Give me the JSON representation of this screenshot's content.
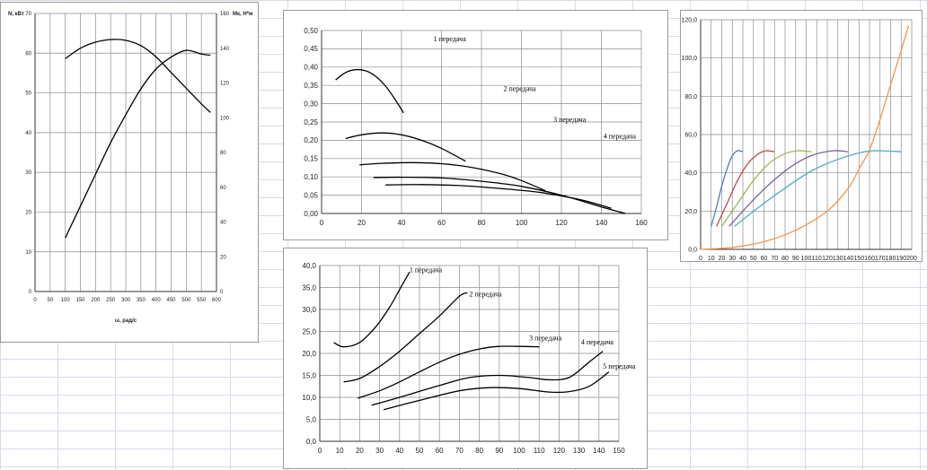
{
  "chart_data": [
    {
      "id": "c1",
      "type": "line",
      "x": {
        "min": 0,
        "max": 600,
        "step": 50,
        "label": "ω, рад/с",
        "ticks": [
          "0",
          "50",
          "100",
          "150",
          "200",
          "250",
          "300",
          "350",
          "400",
          "450",
          "500",
          "550",
          "600"
        ]
      },
      "y_left": {
        "min": 0,
        "max": 70,
        "step": 10,
        "label": "N, кВт",
        "ticks": [
          "0",
          "10",
          "20",
          "30",
          "40",
          "50",
          "60",
          "70"
        ]
      },
      "y_right": {
        "min": 0,
        "max": 160,
        "step": 20,
        "label": "Mк, Н*м",
        "ticks": [
          "0",
          "20",
          "40",
          "60",
          "80",
          "100",
          "120",
          "140",
          "160"
        ]
      },
      "grid": true,
      "series": [
        {
          "axis": "left",
          "color": "#000000",
          "points": [
            [
              100,
              13.5
            ],
            [
              150,
              21.5
            ],
            [
              200,
              29.5
            ],
            [
              250,
              37.5
            ],
            [
              300,
              44.5
            ],
            [
              350,
              51
            ],
            [
              400,
              56
            ],
            [
              450,
              59
            ],
            [
              500,
              60.7
            ],
            [
              550,
              59.8
            ],
            [
              580,
              59.5
            ]
          ]
        },
        {
          "axis": "right",
          "color": "#000000",
          "points": [
            [
              100,
              134
            ],
            [
              150,
              140
            ],
            [
              200,
              143.5
            ],
            [
              250,
              145
            ],
            [
              300,
              144.5
            ],
            [
              350,
              141.5
            ],
            [
              400,
              135
            ],
            [
              450,
              126
            ],
            [
              500,
              117
            ],
            [
              550,
              108
            ],
            [
              580,
              103
            ]
          ]
        }
      ]
    },
    {
      "id": "c2",
      "type": "line",
      "x": {
        "min": 0,
        "max": 160,
        "step": 20,
        "ticks": [
          "0",
          "20",
          "40",
          "60",
          "80",
          "100",
          "120",
          "140",
          "160"
        ]
      },
      "y": {
        "min": 0,
        "max": 0.5,
        "step": 0.05,
        "ticks": [
          "0,00",
          "0,05",
          "0,10",
          "0,15",
          "0,20",
          "0,25",
          "0,30",
          "0,35",
          "0,40",
          "0,45",
          "0,50"
        ]
      },
      "grid": true,
      "annotations": [
        {
          "text": "1 передача",
          "x": 56,
          "y": 0.47
        },
        {
          "text": "2 передача",
          "x": 91,
          "y": 0.335
        },
        {
          "text": "3 передача",
          "x": 116,
          "y": 0.25
        },
        {
          "text": "4 передача",
          "x": 141,
          "y": 0.205
        }
      ],
      "series": [
        {
          "color": "#000000",
          "points": [
            [
              7,
              0.365
            ],
            [
              12,
              0.385
            ],
            [
              17,
              0.393
            ],
            [
              22,
              0.39
            ],
            [
              27,
              0.375
            ],
            [
              32,
              0.348
            ],
            [
              37,
              0.31
            ],
            [
              41,
              0.275
            ]
          ]
        },
        {
          "color": "#000000",
          "points": [
            [
              12,
              0.205
            ],
            [
              20,
              0.215
            ],
            [
              30,
              0.22
            ],
            [
              40,
              0.215
            ],
            [
              50,
              0.2
            ],
            [
              60,
              0.178
            ],
            [
              72,
              0.143
            ]
          ]
        },
        {
          "color": "#000000",
          "points": [
            [
              19,
              0.133
            ],
            [
              30,
              0.137
            ],
            [
              45,
              0.139
            ],
            [
              60,
              0.136
            ],
            [
              75,
              0.126
            ],
            [
              90,
              0.108
            ],
            [
              100,
              0.09
            ],
            [
              112,
              0.062
            ]
          ]
        },
        {
          "color": "#000000",
          "points": [
            [
              26,
              0.098
            ],
            [
              40,
              0.099
            ],
            [
              60,
              0.097
            ],
            [
              80,
              0.088
            ],
            [
              100,
              0.074
            ],
            [
              120,
              0.05
            ],
            [
              140,
              0.018
            ],
            [
              152,
              0.0
            ]
          ]
        },
        {
          "color": "#000000",
          "points": [
            [
              32,
              0.078
            ],
            [
              50,
              0.079
            ],
            [
              70,
              0.076
            ],
            [
              90,
              0.068
            ],
            [
              110,
              0.057
            ],
            [
              130,
              0.037
            ],
            [
              145,
              0.014
            ]
          ]
        }
      ]
    },
    {
      "id": "c3",
      "type": "line",
      "x": {
        "min": 0,
        "max": 150,
        "step": 10,
        "ticks": [
          "0",
          "10",
          "20",
          "30",
          "40",
          "50",
          "60",
          "70",
          "80",
          "90",
          "100",
          "110",
          "120",
          "130",
          "140",
          "150"
        ]
      },
      "y": {
        "min": 0,
        "max": 40,
        "step": 5,
        "ticks": [
          "0,0",
          "5,0",
          "10,0",
          "15,0",
          "20,0",
          "25,0",
          "30,0",
          "35,0",
          "40,0"
        ]
      },
      "grid": true,
      "annotations": [
        {
          "text": "1 передача",
          "x": 45,
          "y": 38.5
        },
        {
          "text": "2 передача",
          "x": 75,
          "y": 33.0
        },
        {
          "text": "3 передача",
          "x": 105,
          "y": 23.0
        },
        {
          "text": "4 передача",
          "x": 131,
          "y": 22.0
        },
        {
          "text": "5 передача",
          "x": 142,
          "y": 16.5
        }
      ],
      "series": [
        {
          "color": "#000000",
          "points": [
            [
              7,
              22.5
            ],
            [
              12,
              21.5
            ],
            [
              20,
              22.5
            ],
            [
              28,
              26
            ],
            [
              35,
              30.5
            ],
            [
              40,
              34.5
            ],
            [
              45,
              38.5
            ]
          ]
        },
        {
          "color": "#000000",
          "points": [
            [
              12,
              13.5
            ],
            [
              20,
              14.3
            ],
            [
              30,
              17
            ],
            [
              40,
              20.5
            ],
            [
              50,
              24.5
            ],
            [
              60,
              28.5
            ],
            [
              70,
              33
            ],
            [
              74,
              33.8
            ]
          ]
        },
        {
          "color": "#000000",
          "points": [
            [
              19,
              9.8
            ],
            [
              30,
              11.5
            ],
            [
              40,
              13.5
            ],
            [
              50,
              15.8
            ],
            [
              60,
              18
            ],
            [
              70,
              19.8
            ],
            [
              80,
              21
            ],
            [
              90,
              21.6
            ],
            [
              100,
              21.6
            ],
            [
              110,
              21.5
            ]
          ]
        },
        {
          "color": "#000000",
          "points": [
            [
              26,
              8.2
            ],
            [
              40,
              10
            ],
            [
              60,
              12.7
            ],
            [
              75,
              14.5
            ],
            [
              90,
              15
            ],
            [
              105,
              14.5
            ],
            [
              115,
              14
            ],
            [
              125,
              14.5
            ],
            [
              135,
              18
            ],
            [
              142,
              20.5
            ]
          ]
        },
        {
          "color": "#000000",
          "points": [
            [
              32,
              7.2
            ],
            [
              50,
              9.3
            ],
            [
              70,
              11.5
            ],
            [
              85,
              12.2
            ],
            [
              100,
              12
            ],
            [
              115,
              11.2
            ],
            [
              125,
              11.3
            ],
            [
              135,
              12.5
            ],
            [
              145,
              15.8
            ]
          ]
        }
      ]
    },
    {
      "id": "c4",
      "type": "line",
      "x": {
        "min": 0,
        "max": 200,
        "step": 10,
        "ticks": [
          "0",
          "10",
          "20",
          "30",
          "40",
          "50",
          "60",
          "70",
          "80",
          "90",
          "100",
          "110",
          "120",
          "130",
          "140",
          "150",
          "160",
          "170",
          "180",
          "190",
          "200"
        ]
      },
      "y": {
        "min": 0,
        "max": 120,
        "step": 20,
        "ticks": [
          "0,0",
          "20,0",
          "40,0",
          "60,0",
          "80,0",
          "100,0",
          "120,0"
        ]
      },
      "grid": true,
      "series": [
        {
          "color": "#4a7ebb",
          "points": [
            [
              10,
              12
            ],
            [
              15,
              22
            ],
            [
              20,
              33
            ],
            [
              25,
              42
            ],
            [
              30,
              49
            ],
            [
              35,
              51.5
            ],
            [
              40,
              51
            ]
          ]
        },
        {
          "color": "#be4b48",
          "points": [
            [
              15,
              12
            ],
            [
              25,
              24
            ],
            [
              35,
              36
            ],
            [
              45,
              45
            ],
            [
              55,
              50
            ],
            [
              62,
              51.5
            ],
            [
              70,
              51
            ]
          ]
        },
        {
          "color": "#98b954",
          "points": [
            [
              20,
              12
            ],
            [
              35,
              24
            ],
            [
              50,
              36
            ],
            [
              65,
              45
            ],
            [
              80,
              50
            ],
            [
              92,
              51.5
            ],
            [
              105,
              51
            ]
          ]
        },
        {
          "color": "#7d60a0",
          "points": [
            [
              27,
              12
            ],
            [
              45,
              23
            ],
            [
              65,
              34
            ],
            [
              85,
              43
            ],
            [
              105,
              49
            ],
            [
              125,
              51.5
            ],
            [
              140,
              51
            ]
          ]
        },
        {
          "color": "#4bacc6",
          "points": [
            [
              32,
              12
            ],
            [
              55,
              22
            ],
            [
              80,
              32
            ],
            [
              105,
              41
            ],
            [
              130,
              47
            ],
            [
              155,
              51
            ],
            [
              170,
              51.5
            ],
            [
              190,
              51
            ]
          ]
        },
        {
          "color": "#f79646",
          "points": [
            [
              0,
              0
            ],
            [
              30,
              1
            ],
            [
              60,
              4
            ],
            [
              90,
              10
            ],
            [
              120,
              20
            ],
            [
              140,
              32
            ],
            [
              150,
              42
            ],
            [
              160,
              52
            ],
            [
              170,
              68
            ],
            [
              180,
              86
            ],
            [
              190,
              104
            ],
            [
              197,
              117
            ]
          ]
        }
      ]
    }
  ]
}
